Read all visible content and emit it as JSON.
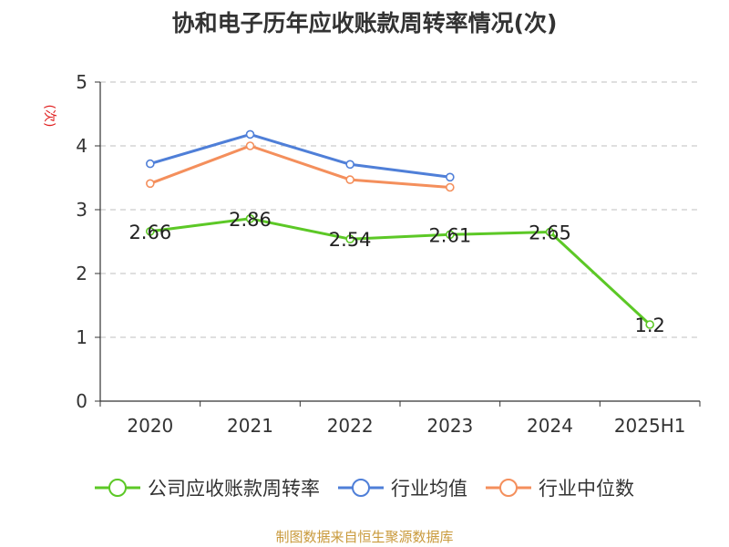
{
  "chart_data": {
    "type": "line",
    "title": "协和电子历年应收账款周转率情况(次)",
    "ylabel": "(次)",
    "ylim": [
      0,
      5
    ],
    "yticks": [
      0,
      1,
      2,
      3,
      4,
      5
    ],
    "categories": [
      "2020",
      "2021",
      "2022",
      "2023",
      "2024",
      "2025H1"
    ],
    "grid": true,
    "legend_position": "bottom",
    "series": [
      {
        "name": "公司应收账款周转率",
        "values": [
          2.66,
          2.86,
          2.54,
          2.61,
          2.65,
          1.2
        ],
        "labels": [
          "2.66",
          "2.86",
          "2.54",
          "2.61",
          "2.65",
          "1.2"
        ],
        "color": "#5cc826"
      },
      {
        "name": "行业均值",
        "values": [
          3.72,
          4.18,
          3.71,
          3.51,
          null,
          null
        ],
        "color": "#4f7fd8"
      },
      {
        "name": "行业中位数",
        "values": [
          3.41,
          4.0,
          3.47,
          3.35,
          null,
          null
        ],
        "color": "#f48f5c"
      }
    ]
  },
  "source_note": "制图数据来自恒生聚源数据库",
  "colors": {
    "source": "#c99a3c",
    "ylabel": "#e02020",
    "axis": "#333333",
    "grid": "#cccccc"
  }
}
